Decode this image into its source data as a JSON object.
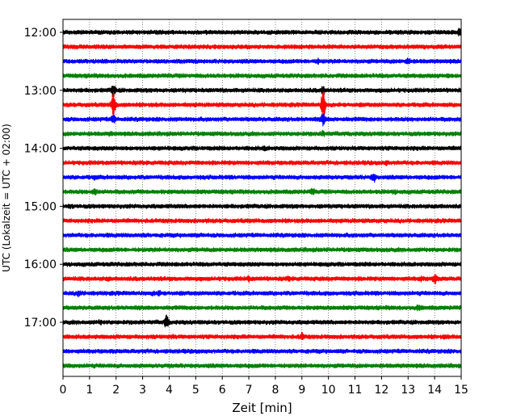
{
  "chart_data": {
    "type": "line",
    "title": "",
    "xlabel": "Zeit  [min]",
    "ylabel": "UTC (Lokalzeit = UTC + 02:00)",
    "xlim": [
      0,
      15
    ],
    "x_ticks": [
      "0",
      "1",
      "2",
      "3",
      "4",
      "5",
      "6",
      "7",
      "8",
      "9",
      "10",
      "11",
      "12",
      "13",
      "14",
      "15"
    ],
    "y_ticks": [
      "12:00",
      "13:00",
      "14:00",
      "15:00",
      "16:00",
      "17:00"
    ],
    "y_tick_rows": [
      0,
      4,
      8,
      12,
      16,
      20
    ],
    "grid": "x-dotted",
    "trace_colors": [
      "#000000",
      "#ff0000",
      "#0000ff",
      "#008000"
    ],
    "series": [
      {
        "start": "12:00",
        "events": [
          [
            8.1,
            1.2
          ],
          [
            14.95,
            2.2
          ]
        ]
      },
      {
        "start": "12:15",
        "events": [
          [
            2.4,
            0.9
          ],
          [
            7.2,
            1.0
          ],
          [
            7.5,
            0.9
          ]
        ]
      },
      {
        "start": "12:30",
        "events": [
          [
            9.6,
            1.4
          ],
          [
            13.0,
            1.6
          ]
        ]
      },
      {
        "start": "12:45",
        "events": [
          [
            4.0,
            1.0
          ],
          [
            12.0,
            1.0
          ],
          [
            14.5,
            1.2
          ]
        ]
      },
      {
        "start": "13:00",
        "events": [
          [
            1.9,
            2.5
          ],
          [
            9.8,
            2.0
          ]
        ]
      },
      {
        "start": "13:15",
        "events": [
          [
            1.9,
            4.5
          ],
          [
            9.8,
            5.5
          ]
        ]
      },
      {
        "start": "13:30",
        "events": [
          [
            1.9,
            2.0
          ],
          [
            9.8,
            2.6
          ]
        ]
      },
      {
        "start": "13:45",
        "events": [
          [
            1.8,
            1.2
          ],
          [
            9.8,
            1.4
          ]
        ]
      },
      {
        "start": "14:00",
        "events": [
          [
            2.3,
            1.0
          ],
          [
            7.6,
            1.3
          ]
        ]
      },
      {
        "start": "14:15",
        "events": [
          [
            8.3,
            1.0
          ],
          [
            12.2,
            1.3
          ]
        ]
      },
      {
        "start": "14:30",
        "events": [
          [
            1.2,
            1.3
          ],
          [
            11.7,
            2.1
          ]
        ]
      },
      {
        "start": "14:45",
        "events": [
          [
            1.2,
            1.8
          ],
          [
            9.4,
            1.6
          ],
          [
            12.5,
            1.2
          ]
        ]
      },
      {
        "start": "15:00",
        "events": [
          [
            0.3,
            1.2
          ],
          [
            9.8,
            1.0
          ],
          [
            14.2,
            1.1
          ]
        ]
      },
      {
        "start": "15:15",
        "events": [
          [
            8.2,
            1.0
          ],
          [
            13.3,
            1.0
          ]
        ]
      },
      {
        "start": "15:30",
        "events": [
          [
            3.0,
            1.1
          ],
          [
            8.3,
            1.0
          ],
          [
            11.8,
            1.0
          ]
        ]
      },
      {
        "start": "15:45",
        "events": [
          [
            2.5,
            0.9
          ],
          [
            9.2,
            1.0
          ]
        ]
      },
      {
        "start": "16:00",
        "events": [
          [
            13.8,
            1.0
          ]
        ]
      },
      {
        "start": "16:15",
        "events": [
          [
            1.7,
            1.2
          ],
          [
            7.0,
            1.4
          ],
          [
            8.5,
            1.3
          ],
          [
            13.5,
            1.4
          ],
          [
            14.0,
            2.2
          ]
        ]
      },
      {
        "start": "16:30",
        "events": [
          [
            0.6,
            1.6
          ],
          [
            3.4,
            1.2
          ],
          [
            3.6,
            1.4
          ]
        ]
      },
      {
        "start": "16:45",
        "events": [
          [
            3.6,
            1.0
          ],
          [
            13.4,
            1.5
          ]
        ]
      },
      {
        "start": "17:00",
        "events": [
          [
            1.4,
            1.3
          ],
          [
            3.9,
            2.7
          ]
        ]
      },
      {
        "start": "17:15",
        "events": [
          [
            4.1,
            1.2
          ],
          [
            9.0,
            1.8
          ],
          [
            14.4,
            1.2
          ]
        ]
      },
      {
        "start": "17:30",
        "events": [
          [
            5.8,
            0.9
          ],
          [
            10.8,
            0.8
          ]
        ]
      },
      {
        "start": "17:45",
        "events": [
          [
            3.2,
            0.9
          ],
          [
            12.5,
            1.0
          ]
        ]
      }
    ]
  }
}
